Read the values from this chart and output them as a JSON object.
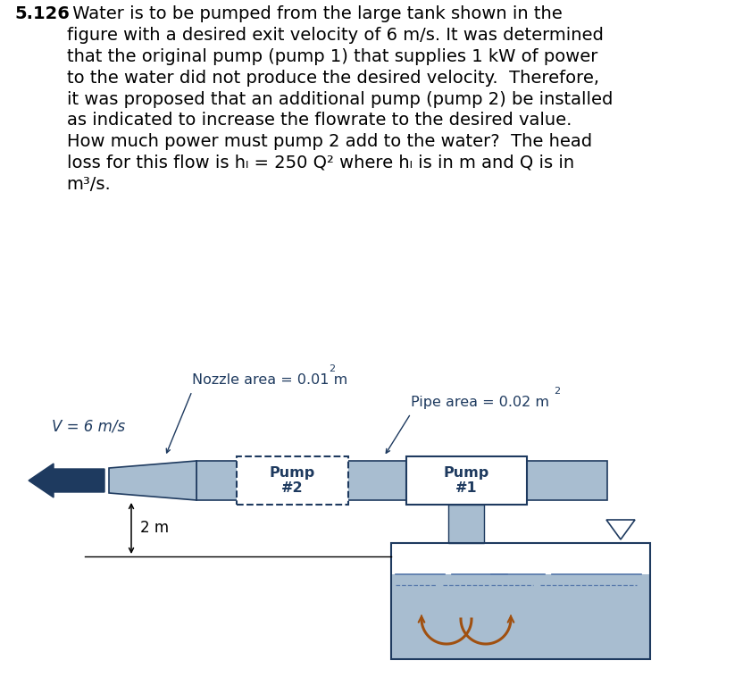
{
  "title_num": "5.126",
  "body_text": " Water is to be pumped from the large tank shown in the\nfigure with a desired exit velocity of 6 m/s. It was determined\nthat the original pump (pump 1) that supplies 1 kW of power\nto the water did not produce the desired velocity.  Therefore,\nit was proposed that an additional pump (pump 2) be installed\nas indicated to increase the flowrate to the desired value.\nHow much power must pump 2 add to the water?  The head\nloss for this flow is hₗ = 250 Q² where hₗ is in m and Q is in\nm³/s.",
  "bg_color": "#ffffff",
  "text_color": "#000000",
  "pipe_color": "#a8bdd0",
  "dark_color": "#1e3a5f",
  "label_color": "#1e3a5f",
  "flow_arrow_color": "#a05010",
  "nozzle_label": "Nozzle area = 0.01 m",
  "pipe_label": "Pipe area = 0.02 m",
  "v_label": "V = 6 m/s",
  "height_label": "2 m",
  "pump2_label": "Pump\n#2",
  "pump1_label": "Pump\n#1"
}
